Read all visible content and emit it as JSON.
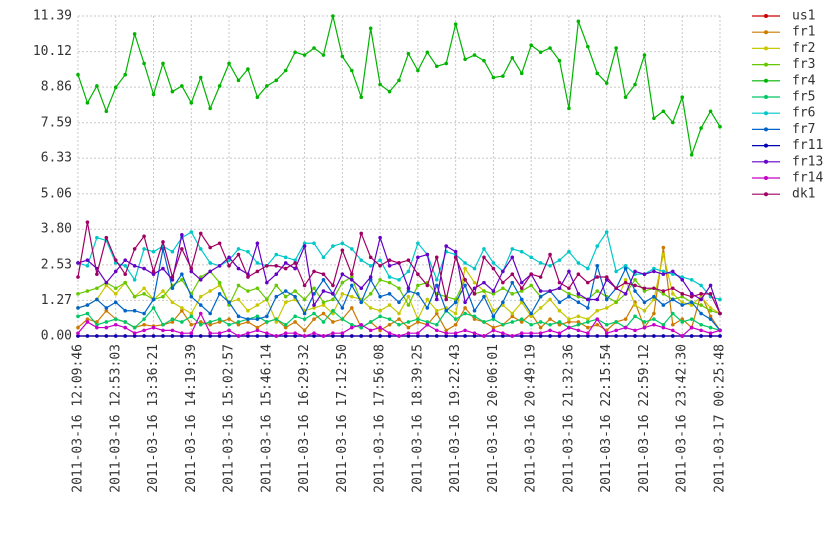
{
  "chart_data": {
    "type": "line",
    "categories": [
      "2011-03-16 12:09:46",
      null,
      null,
      null,
      "2011-03-16 12:53:03",
      null,
      null,
      null,
      "2011-03-16 13:36:21",
      null,
      null,
      null,
      "2011-03-16 14:19:39",
      null,
      null,
      null,
      "2011-03-16 15:02:57",
      null,
      null,
      null,
      "2011-03-16 15:46:14",
      null,
      null,
      null,
      "2011-03-16 16:29:32",
      null,
      null,
      null,
      "2011-03-16 17:12:50",
      null,
      null,
      null,
      "2011-03-16 17:56:08",
      null,
      null,
      null,
      "2011-03-16 18:39:25",
      null,
      null,
      null,
      "2011-03-16 19:22:43",
      null,
      null,
      null,
      "2011-03-16 20:06:01",
      null,
      null,
      null,
      "2011-03-16 20:49:19",
      null,
      null,
      null,
      "2011-03-16 21:32:36",
      null,
      null,
      null,
      "2011-03-16 22:15:54",
      null,
      null,
      null,
      "2011-03-16 22:59:12",
      null,
      null,
      null,
      "2011-03-16 23:42:30",
      null,
      null,
      null,
      "2011-03-17 00:25:48"
    ],
    "ylim": [
      0,
      11.39
    ],
    "yticks": [
      {
        "value": 0,
        "label": "0.00"
      },
      1.27,
      2.53,
      {
        "value": 3.8,
        "label": "3.80"
      },
      5.06,
      6.33,
      7.59,
      8.86,
      10.12,
      11.39
    ],
    "grid": true,
    "legend": "right",
    "series": [
      {
        "name": "us1",
        "color": "#cc0000",
        "values": [
          0,
          0,
          0,
          0,
          0,
          0,
          0,
          0,
          0,
          0,
          0,
          0,
          0,
          0,
          0,
          0,
          0,
          0,
          0,
          0,
          0,
          0,
          0,
          0,
          0,
          0,
          0,
          0,
          0,
          0,
          0,
          0,
          0,
          0,
          0,
          0,
          0,
          0,
          0,
          0,
          0,
          0,
          0,
          0,
          0,
          0,
          0,
          0,
          0,
          0,
          0,
          0,
          0,
          0,
          0,
          0,
          0,
          0,
          0,
          0,
          0,
          0,
          0,
          0,
          0,
          0,
          0,
          0,
          0
        ]
      },
      {
        "name": "fr1",
        "color": "#cc7a00",
        "values": [
          0.3,
          0.6,
          0.5,
          0.9,
          0.6,
          0.5,
          0.3,
          0.4,
          0.35,
          0.4,
          0.5,
          0.9,
          0.4,
          0.5,
          0.4,
          0.5,
          0.6,
          0.4,
          0.5,
          0.3,
          0.5,
          0.6,
          0.3,
          0.5,
          0.2,
          0.6,
          0.8,
          0.5,
          0.6,
          1.0,
          0.3,
          0.5,
          0.2,
          0.4,
          0.6,
          0.3,
          0.5,
          0.4,
          0.8,
          0.2,
          0.4,
          1.0,
          0.6,
          0.5,
          0.3,
          0.4,
          0.7,
          0.5,
          0.8,
          0.3,
          0.6,
          0.4,
          0.5,
          0.5,
          0.3,
          0.4,
          0.2,
          0.5,
          0.6,
          1.2,
          0.3,
          0.8,
          3.15,
          0.4,
          0.6,
          0.3,
          1.5,
          0.7,
          0.2
        ]
      },
      {
        "name": "fr2",
        "color": "#c8c800",
        "values": [
          1.0,
          1.1,
          1.3,
          1.8,
          1.5,
          1.9,
          1.4,
          1.7,
          1.3,
          1.6,
          1.2,
          1.0,
          0.8,
          1.4,
          1.6,
          1.8,
          1.2,
          1.3,
          0.9,
          1.1,
          1.3,
          0.5,
          1.2,
          1.3,
          0.9,
          1.0,
          1.1,
          0.8,
          1.5,
          1.4,
          1.3,
          1.0,
          0.9,
          1.1,
          0.8,
          1.4,
          0.6,
          1.3,
          0.9,
          1.0,
          0.8,
          2.4,
          1.9,
          1.6,
          0.9,
          1.1,
          0.8,
          1.2,
          0.7,
          1.0,
          1.3,
          0.9,
          0.6,
          0.7,
          0.6,
          0.9,
          1.0,
          1.2,
          2.0,
          1.1,
          0.9,
          1.3,
          2.9,
          1.5,
          1.2,
          1.1,
          1.4,
          1.0,
          0.8
        ]
      },
      {
        "name": "fr3",
        "color": "#66c800",
        "values": [
          1.5,
          1.6,
          1.7,
          1.9,
          1.7,
          1.9,
          1.4,
          1.5,
          1.3,
          1.4,
          1.8,
          2.0,
          1.5,
          2.1,
          2.3,
          1.9,
          1.1,
          1.8,
          1.6,
          1.7,
          1.3,
          1.8,
          1.4,
          1.6,
          1.3,
          1.7,
          1.2,
          1.3,
          1.9,
          2.1,
          1.2,
          1.5,
          2.0,
          1.9,
          1.7,
          1.1,
          1.8,
          1.9,
          1.5,
          1.4,
          1.3,
          2.0,
          1.5,
          1.6,
          1.5,
          1.7,
          1.5,
          1.6,
          1.8,
          1.4,
          1.6,
          1.7,
          1.5,
          1.4,
          1.3,
          1.6,
          1.4,
          1.2,
          1.5,
          2.0,
          1.6,
          1.7,
          1.5,
          1.3,
          1.4,
          1.2,
          1.1,
          0.9,
          0.8
        ]
      },
      {
        "name": "fr4",
        "color": "#00b400",
        "values": [
          9.3,
          8.3,
          8.9,
          8.0,
          8.85,
          9.3,
          10.75,
          9.7,
          8.6,
          9.7,
          8.7,
          8.9,
          8.3,
          9.2,
          8.1,
          8.9,
          9.7,
          9.1,
          9.5,
          8.5,
          8.9,
          9.1,
          9.45,
          10.1,
          10.0,
          10.25,
          10.0,
          11.39,
          9.95,
          9.45,
          8.5,
          10.95,
          8.95,
          8.7,
          9.1,
          10.05,
          9.45,
          10.1,
          9.6,
          9.7,
          11.1,
          9.85,
          10.0,
          9.8,
          9.2,
          9.25,
          9.9,
          9.35,
          10.35,
          10.1,
          10.25,
          9.8,
          8.1,
          11.2,
          10.3,
          9.35,
          9.0,
          10.25,
          8.5,
          8.95,
          10.0,
          7.75,
          8.0,
          7.6,
          8.5,
          6.45,
          7.4,
          8.0,
          7.45
        ]
      },
      {
        "name": "fr5",
        "color": "#00c864",
        "values": [
          0.7,
          0.8,
          0.4,
          0.5,
          0.6,
          0.5,
          0.3,
          0.6,
          1.0,
          0.4,
          0.6,
          0.5,
          0.7,
          0.4,
          0.5,
          0.6,
          0.4,
          0.5,
          0.6,
          0.7,
          0.5,
          0.6,
          0.4,
          0.7,
          0.6,
          0.8,
          0.5,
          0.9,
          0.6,
          0.4,
          0.3,
          0.5,
          0.7,
          0.6,
          0.4,
          0.5,
          0.6,
          0.5,
          0.4,
          0.9,
          0.6,
          0.8,
          0.7,
          0.5,
          0.6,
          0.4,
          0.5,
          0.6,
          0.4,
          0.5,
          0.4,
          0.5,
          0.3,
          0.4,
          0.5,
          0.6,
          0.4,
          0.5,
          0.3,
          0.7,
          0.5,
          0.6,
          0.4,
          0.8,
          0.5,
          0.6,
          0.4,
          0.3,
          0.2
        ]
      },
      {
        "name": "fr6",
        "color": "#00c8c8",
        "values": [
          2.6,
          2.5,
          3.5,
          3.4,
          2.6,
          2.5,
          2.0,
          3.1,
          3.0,
          3.2,
          3.0,
          3.5,
          3.7,
          3.1,
          2.6,
          2.5,
          2.7,
          3.1,
          3.0,
          2.6,
          2.5,
          2.9,
          2.8,
          2.7,
          3.3,
          3.3,
          2.8,
          3.2,
          3.3,
          3.1,
          2.7,
          2.5,
          2.7,
          2.1,
          2.0,
          2.3,
          3.3,
          2.9,
          2.0,
          3.0,
          2.9,
          2.6,
          2.4,
          3.1,
          2.6,
          2.3,
          3.1,
          3.0,
          2.8,
          2.6,
          2.5,
          2.7,
          3.0,
          2.6,
          2.4,
          3.2,
          3.7,
          2.3,
          2.5,
          2.2,
          2.2,
          2.4,
          2.3,
          2.2,
          2.1,
          2.0,
          1.8,
          1.4,
          1.3
        ]
      },
      {
        "name": "fr7",
        "color": "#0064c8",
        "values": [
          1.0,
          1.1,
          1.3,
          1.0,
          1.2,
          0.9,
          0.9,
          0.8,
          1.3,
          3.1,
          1.7,
          2.2,
          1.4,
          1.1,
          0.8,
          1.5,
          1.2,
          0.7,
          0.6,
          0.6,
          0.7,
          1.4,
          1.6,
          1.4,
          0.8,
          1.5,
          2.0,
          1.5,
          1.0,
          1.8,
          1.2,
          2.0,
          1.4,
          1.5,
          1.2,
          1.6,
          1.5,
          1.0,
          1.8,
          0.9,
          1.2,
          1.8,
          0.9,
          1.4,
          0.7,
          1.2,
          1.9,
          1.3,
          0.8,
          1.4,
          1.6,
          1.2,
          1.4,
          1.2,
          1.0,
          2.5,
          1.3,
          1.7,
          2.4,
          1.6,
          1.2,
          1.4,
          1.1,
          1.3,
          1.1,
          1.2,
          0.8,
          0.6,
          0.2
        ]
      },
      {
        "name": "fr11",
        "color": "#0000b4",
        "values": [
          0,
          0,
          0,
          0,
          0,
          0,
          0,
          0,
          0,
          0,
          0,
          0,
          0,
          0,
          0,
          0,
          0,
          0,
          0,
          0,
          0,
          0,
          0,
          0,
          0,
          0,
          0,
          0,
          0,
          0,
          0,
          0,
          0,
          0,
          0,
          0,
          0,
          0,
          0,
          0,
          0,
          0,
          0,
          0,
          0,
          0,
          0,
          0,
          0,
          0,
          0,
          0,
          0,
          0,
          0,
          0,
          0,
          0,
          0,
          0,
          0,
          0,
          0,
          0,
          0,
          0,
          0,
          0,
          0
        ]
      },
      {
        "name": "fr13",
        "color": "#6400c8",
        "values": [
          2.6,
          2.7,
          2.4,
          1.9,
          2.3,
          2.7,
          2.5,
          2.4,
          2.2,
          2.4,
          2.0,
          3.6,
          2.3,
          2.0,
          2.3,
          2.5,
          2.8,
          2.4,
          2.2,
          3.3,
          1.9,
          2.2,
          2.6,
          2.4,
          3.2,
          1.1,
          1.6,
          1.5,
          2.2,
          2.0,
          1.7,
          2.1,
          3.5,
          2.5,
          2.6,
          1.7,
          2.8,
          2.9,
          1.3,
          3.2,
          3.0,
          1.2,
          1.7,
          1.9,
          1.6,
          2.3,
          2.8,
          1.9,
          2.2,
          1.6,
          1.6,
          1.7,
          2.3,
          1.5,
          1.3,
          1.3,
          2.0,
          1.7,
          1.5,
          2.3,
          2.2,
          2.3,
          2.2,
          2.3,
          2.0,
          1.5,
          1.3,
          1.8,
          0.8
        ]
      },
      {
        "name": "fr14",
        "color": "#c800c8",
        "values": [
          0.1,
          0.5,
          0.3,
          0.3,
          0.4,
          0.3,
          0.1,
          0.2,
          0.3,
          0.2,
          0.2,
          0.1,
          0.1,
          0.8,
          0.1,
          0.1,
          0.2,
          0.0,
          0.1,
          0.2,
          0.1,
          0.0,
          0.1,
          0.1,
          0.0,
          0.1,
          0.0,
          0.1,
          0.1,
          0.3,
          0.4,
          0.2,
          0.3,
          0.1,
          0.0,
          0.1,
          0.1,
          0.4,
          0.2,
          0.1,
          0.1,
          0.2,
          0.1,
          0.0,
          0.2,
          0.1,
          0.0,
          0.1,
          0.1,
          0.1,
          0.2,
          0.1,
          0.3,
          0.2,
          0.1,
          0.6,
          0.1,
          0.2,
          0.3,
          0.2,
          0.3,
          0.4,
          0.3,
          0.2,
          0.0,
          0.3,
          0.2,
          0.1,
          0.2
        ]
      },
      {
        "name": "dk1",
        "color": "#a00064",
        "values": [
          2.1,
          4.05,
          2.2,
          3.5,
          2.7,
          2.2,
          3.1,
          3.55,
          2.3,
          3.35,
          2.1,
          3.1,
          2.4,
          3.65,
          3.15,
          3.3,
          2.5,
          2.9,
          2.1,
          2.3,
          2.5,
          2.5,
          2.4,
          2.6,
          1.8,
          2.3,
          2.2,
          1.8,
          3.05,
          2.2,
          3.65,
          2.8,
          2.5,
          2.7,
          2.6,
          2.7,
          2.2,
          1.8,
          2.8,
          1.3,
          2.8,
          2.0,
          1.5,
          2.8,
          2.4,
          1.9,
          2.2,
          1.7,
          2.2,
          2.1,
          2.9,
          1.9,
          1.7,
          2.2,
          1.9,
          2.1,
          2.1,
          1.7,
          1.9,
          1.8,
          1.7,
          1.7,
          1.6,
          1.7,
          1.5,
          1.4,
          1.5,
          1.5,
          0.8
        ]
      }
    ]
  }
}
